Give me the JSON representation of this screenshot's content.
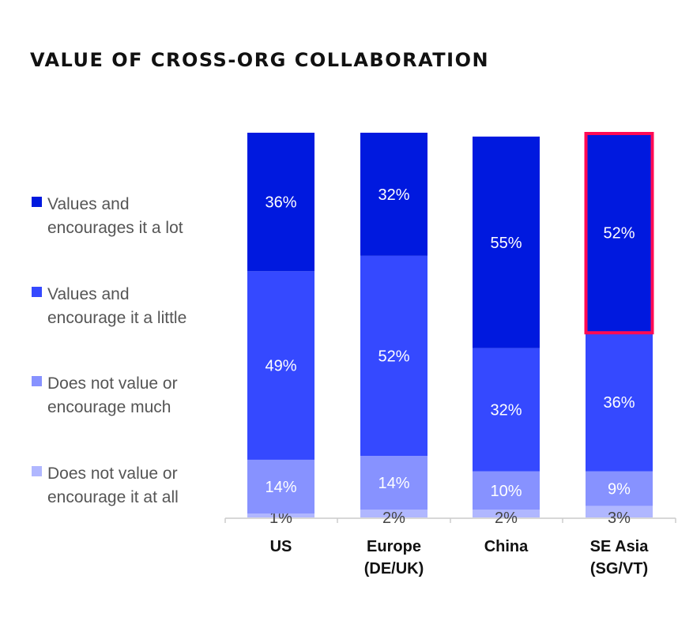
{
  "chart_data": {
    "type": "bar",
    "stacked": true,
    "title": "VALUE OF CROSS-ORG COLLABORATION",
    "categories": [
      [
        "US"
      ],
      [
        "Europe",
        "(DE/UK)"
      ],
      [
        "China"
      ],
      [
        "SE Asia",
        "(SG/VT)"
      ]
    ],
    "series": [
      {
        "name": "Values and encourages it a lot",
        "color": "#0019df",
        "values": [
          36,
          32,
          55,
          52
        ],
        "labels": [
          "36%",
          "32%",
          "55%",
          "52%"
        ]
      },
      {
        "name": "Values and encourage it a little",
        "color": "#3549ff",
        "values": [
          49,
          52,
          32,
          36
        ],
        "labels": [
          "49%",
          "52%",
          "32%",
          "36%"
        ]
      },
      {
        "name": "Does not value or encourage much",
        "color": "#8792ff",
        "values": [
          14,
          14,
          10,
          9
        ],
        "labels": [
          "14%",
          "14%",
          "10%",
          "9%"
        ]
      },
      {
        "name": "Does not value or encourage it at all",
        "color": "#b0b7ff",
        "values": [
          1,
          2,
          2,
          3
        ],
        "labels": [
          "1%",
          "2%",
          "2%",
          "3%"
        ]
      }
    ],
    "ylim": [
      0,
      100
    ],
    "grid": false,
    "legend": "left",
    "highlight": {
      "category": "SE Asia (SG/VT)",
      "series": "Values and encourages it a lot",
      "color": "#ff0a54"
    }
  },
  "legend": {
    "items": [
      [
        "Values and",
        "encourages it a lot"
      ],
      [
        "Values and",
        "encourage it a little"
      ],
      [
        "Does not value or",
        "encourage much"
      ],
      [
        "Does not value or",
        "encourage it at all"
      ]
    ]
  }
}
